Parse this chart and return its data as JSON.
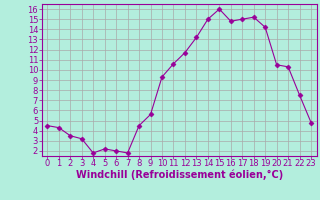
{
  "x": [
    0,
    1,
    2,
    3,
    4,
    5,
    6,
    7,
    8,
    9,
    10,
    11,
    12,
    13,
    14,
    15,
    16,
    17,
    18,
    19,
    20,
    21,
    22,
    23
  ],
  "y": [
    4.5,
    4.3,
    3.5,
    3.2,
    1.8,
    2.2,
    2.0,
    1.8,
    4.5,
    5.6,
    9.3,
    10.6,
    11.7,
    13.2,
    15.0,
    16.0,
    14.8,
    15.0,
    15.2,
    14.2,
    10.5,
    10.3,
    7.5,
    4.8
  ],
  "line_color": "#990099",
  "marker": "D",
  "marker_size": 2.5,
  "bg_color": "#b3eedd",
  "grid_color": "#aaaaaa",
  "tick_color": "#990099",
  "label_color": "#990099",
  "xlabel": "Windchill (Refroidissement éolien,°C)",
  "ylim": [
    1.5,
    16.5
  ],
  "xlim": [
    -0.5,
    23.5
  ],
  "yticks": [
    2,
    3,
    4,
    5,
    6,
    7,
    8,
    9,
    10,
    11,
    12,
    13,
    14,
    15,
    16
  ],
  "xticks": [
    0,
    1,
    2,
    3,
    4,
    5,
    6,
    7,
    8,
    9,
    10,
    11,
    12,
    13,
    14,
    15,
    16,
    17,
    18,
    19,
    20,
    21,
    22,
    23
  ],
  "font_size": 6.0,
  "xlabel_font_size": 7.0
}
